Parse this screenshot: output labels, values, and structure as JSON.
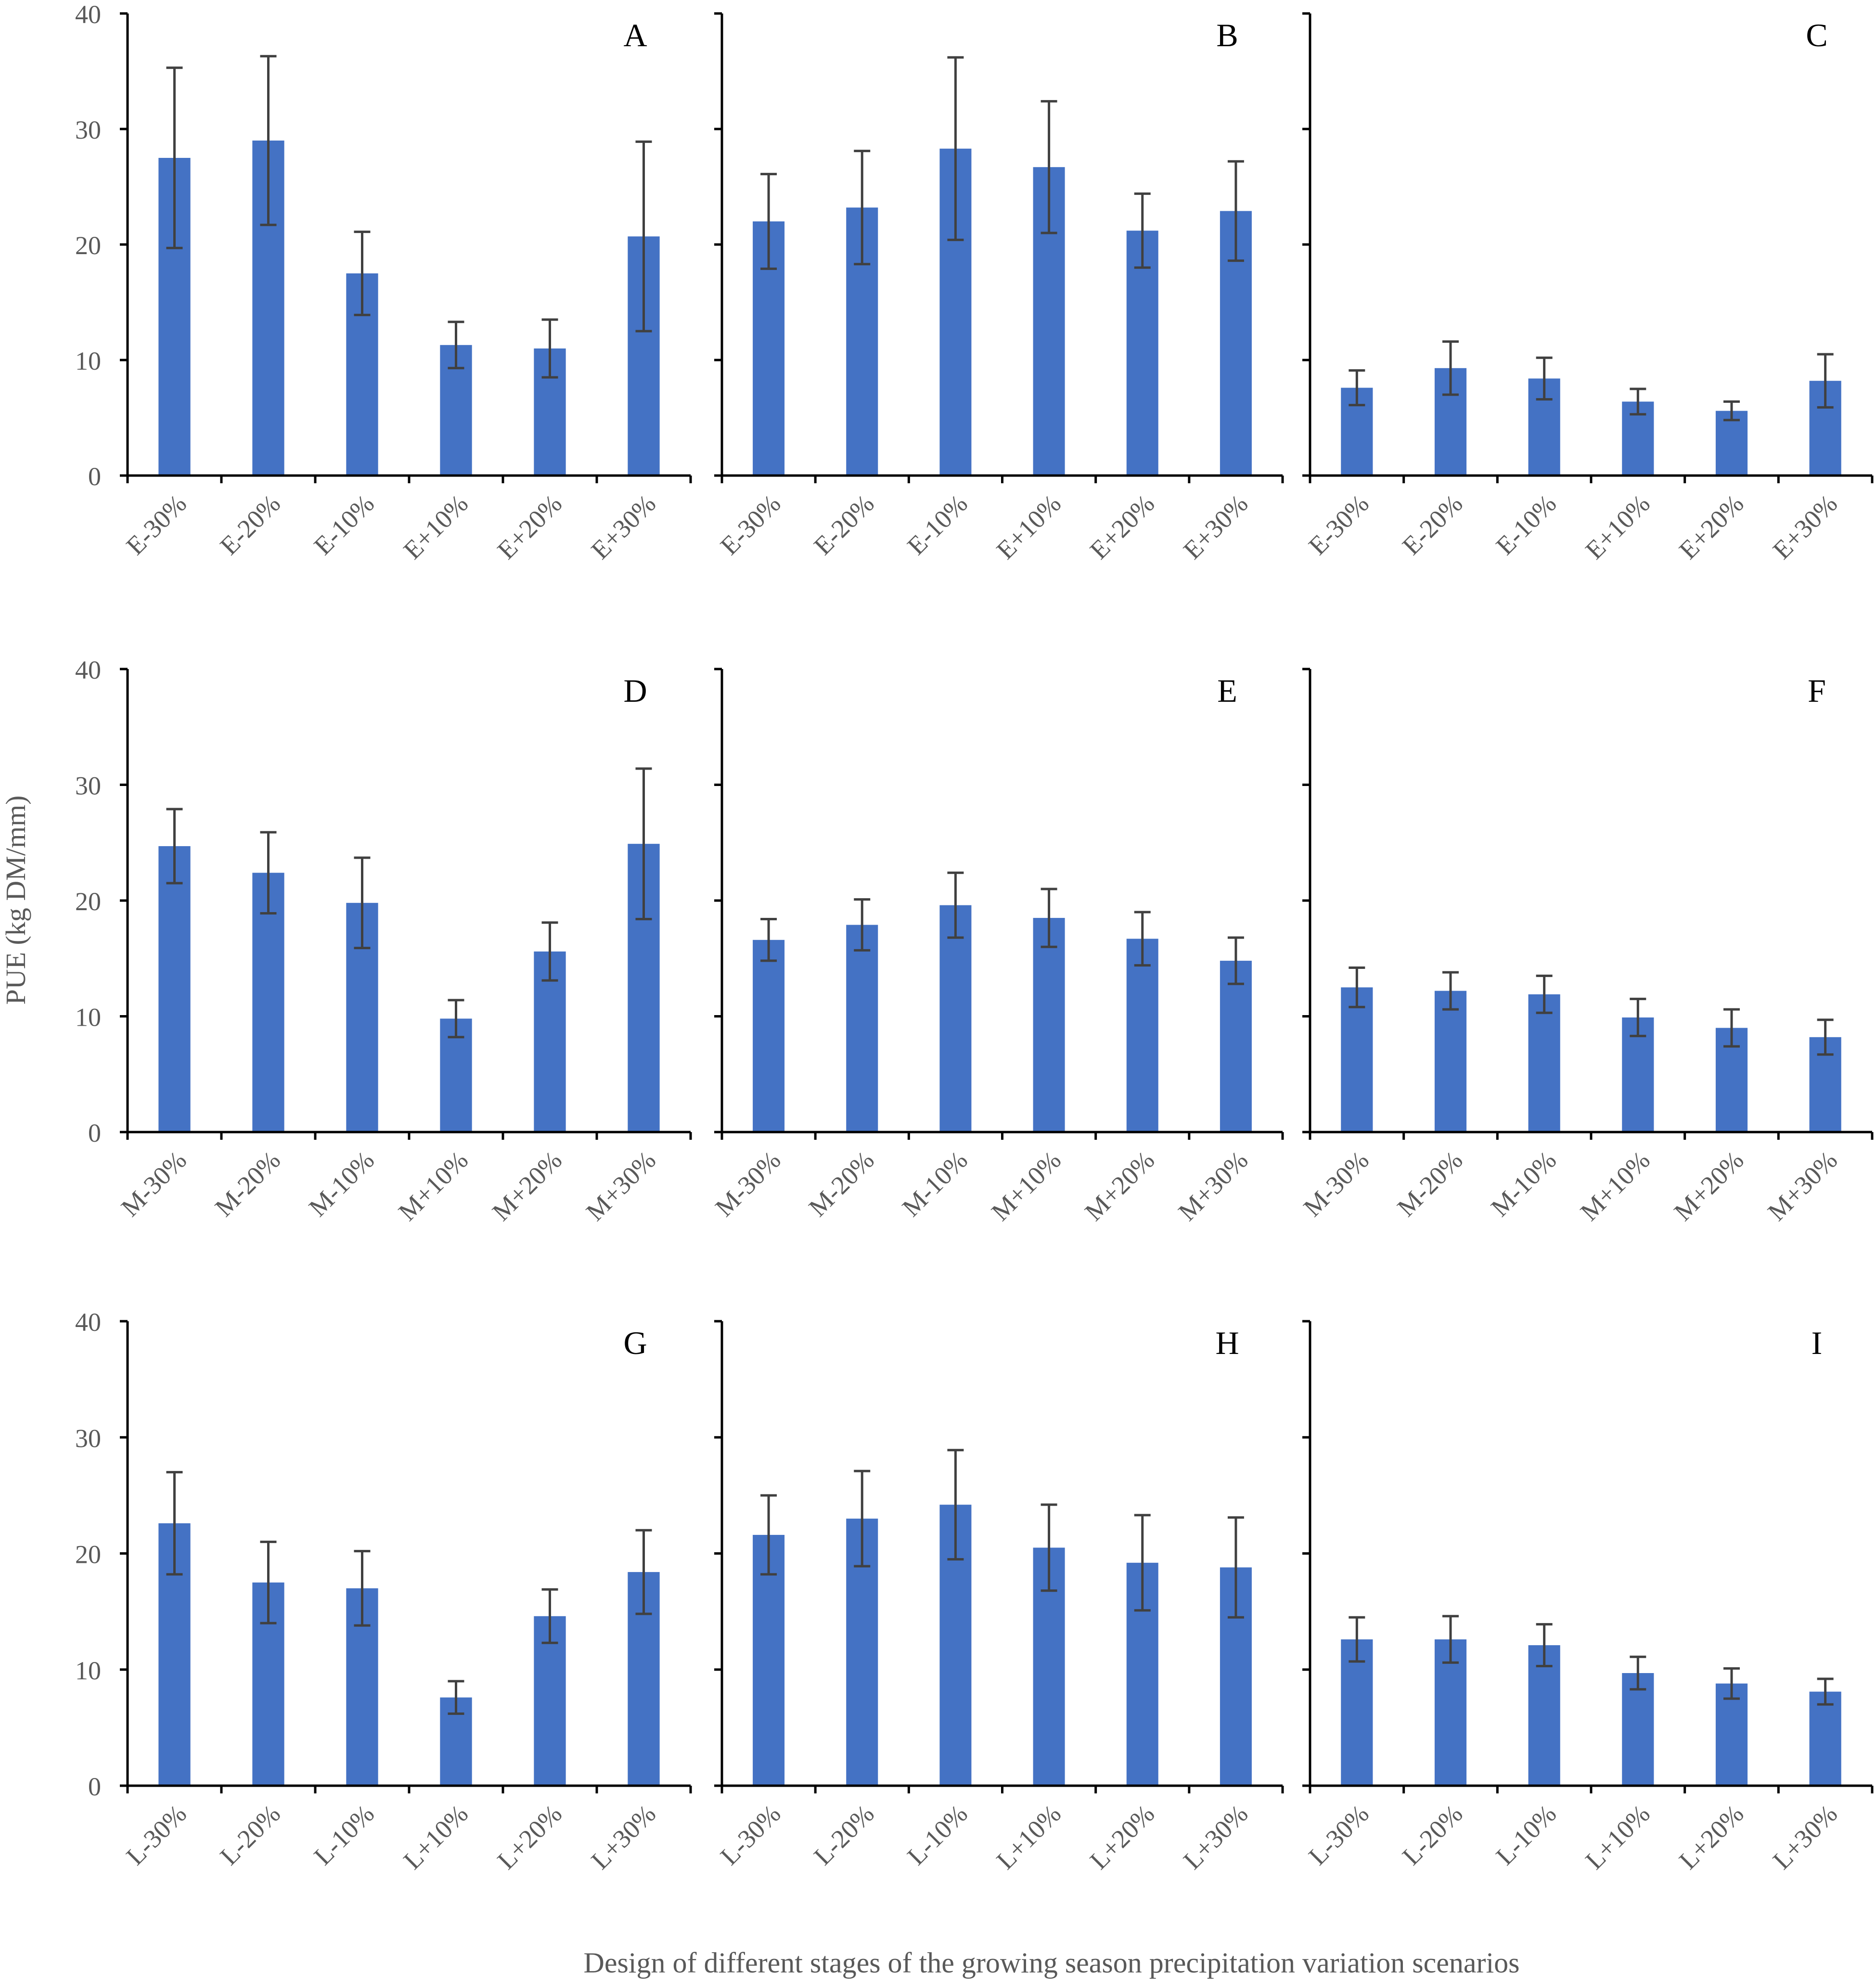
{
  "ylabel": "PUE (kg DM/mm)",
  "xlabel": "Design of different stages of the growing season precipitation variation scenarios",
  "colors": {
    "bar": "#4472C4",
    "axis": "#000000",
    "error": "#404040",
    "text": "#595959"
  },
  "chart_data": [
    {
      "type": "bar",
      "panel": "A",
      "categories": [
        "E-30%",
        "E-20%",
        "E-10%",
        "E+10%",
        "E+20%",
        "E+30%"
      ],
      "series": [
        {
          "values": [
            27.5,
            29.0,
            17.5,
            11.3,
            11.0,
            20.7
          ],
          "errors": [
            7.8,
            7.3,
            3.6,
            2.0,
            2.5,
            8.2
          ]
        }
      ],
      "ylim": [
        0,
        40
      ],
      "yticks": [
        0,
        10,
        20,
        30,
        40
      ],
      "show_tick_labels": true
    },
    {
      "type": "bar",
      "panel": "B",
      "categories": [
        "E-30%",
        "E-20%",
        "E-10%",
        "E+10%",
        "E+20%",
        "E+30%"
      ],
      "series": [
        {
          "values": [
            22.0,
            23.2,
            28.3,
            26.7,
            21.2,
            22.9
          ],
          "errors": [
            4.1,
            4.9,
            7.9,
            5.7,
            3.2,
            4.3
          ]
        }
      ],
      "ylim": [
        0,
        40
      ],
      "yticks": [
        0,
        10,
        20,
        30,
        40
      ],
      "show_tick_labels": false
    },
    {
      "type": "bar",
      "panel": "C",
      "categories": [
        "E-30%",
        "E-20%",
        "E-10%",
        "E+10%",
        "E+20%",
        "E+30%"
      ],
      "series": [
        {
          "values": [
            7.6,
            9.3,
            8.4,
            6.4,
            5.6,
            8.2
          ],
          "errors": [
            1.5,
            2.3,
            1.8,
            1.1,
            0.8,
            2.3
          ]
        }
      ],
      "ylim": [
        0,
        40
      ],
      "yticks": [
        0,
        10,
        20,
        30,
        40
      ],
      "show_tick_labels": false
    },
    {
      "type": "bar",
      "panel": "D",
      "categories": [
        "M-30%",
        "M-20%",
        "M-10%",
        "M+10%",
        "M+20%",
        "M+30%"
      ],
      "series": [
        {
          "values": [
            24.7,
            22.4,
            19.8,
            9.8,
            15.6,
            24.9
          ],
          "errors": [
            3.2,
            3.5,
            3.9,
            1.6,
            2.5,
            6.5
          ]
        }
      ],
      "ylim": [
        0,
        40
      ],
      "yticks": [
        0,
        10,
        20,
        30,
        40
      ],
      "show_tick_labels": true
    },
    {
      "type": "bar",
      "panel": "E",
      "categories": [
        "M-30%",
        "M-20%",
        "M-10%",
        "M+10%",
        "M+20%",
        "M+30%"
      ],
      "series": [
        {
          "values": [
            16.6,
            17.9,
            19.6,
            18.5,
            16.7,
            14.8
          ],
          "errors": [
            1.8,
            2.2,
            2.8,
            2.5,
            2.3,
            2.0
          ]
        }
      ],
      "ylim": [
        0,
        40
      ],
      "yticks": [
        0,
        10,
        20,
        30,
        40
      ],
      "show_tick_labels": false
    },
    {
      "type": "bar",
      "panel": "F",
      "categories": [
        "M-30%",
        "M-20%",
        "M-10%",
        "M+10%",
        "M+20%",
        "M+30%"
      ],
      "series": [
        {
          "values": [
            12.5,
            12.2,
            11.9,
            9.9,
            9.0,
            8.2
          ],
          "errors": [
            1.7,
            1.6,
            1.6,
            1.6,
            1.6,
            1.5
          ]
        }
      ],
      "ylim": [
        0,
        40
      ],
      "yticks": [
        0,
        10,
        20,
        30,
        40
      ],
      "show_tick_labels": false
    },
    {
      "type": "bar",
      "panel": "G",
      "categories": [
        "L-30%",
        "L-20%",
        "L-10%",
        "L+10%",
        "L+20%",
        "L+30%"
      ],
      "series": [
        {
          "values": [
            22.6,
            17.5,
            17.0,
            7.6,
            14.6,
            18.4
          ],
          "errors": [
            4.4,
            3.5,
            3.2,
            1.4,
            2.3,
            3.6
          ]
        }
      ],
      "ylim": [
        0,
        40
      ],
      "yticks": [
        0,
        10,
        20,
        30,
        40
      ],
      "show_tick_labels": true
    },
    {
      "type": "bar",
      "panel": "H",
      "categories": [
        "L-30%",
        "L-20%",
        "L-10%",
        "L+10%",
        "L+20%",
        "L+30%"
      ],
      "series": [
        {
          "values": [
            21.6,
            23.0,
            24.2,
            20.5,
            19.2,
            18.8
          ],
          "errors": [
            3.4,
            4.1,
            4.7,
            3.7,
            4.1,
            4.3
          ]
        }
      ],
      "ylim": [
        0,
        40
      ],
      "yticks": [
        0,
        10,
        20,
        30,
        40
      ],
      "show_tick_labels": false
    },
    {
      "type": "bar",
      "panel": "I",
      "categories": [
        "L-30%",
        "L-20%",
        "L-10%",
        "L+10%",
        "L+20%",
        "L+30%"
      ],
      "series": [
        {
          "values": [
            12.6,
            12.6,
            12.1,
            9.7,
            8.8,
            8.1
          ],
          "errors": [
            1.9,
            2.0,
            1.8,
            1.4,
            1.3,
            1.1
          ]
        }
      ],
      "ylim": [
        0,
        40
      ],
      "yticks": [
        0,
        10,
        20,
        30,
        40
      ],
      "show_tick_labels": false
    }
  ]
}
